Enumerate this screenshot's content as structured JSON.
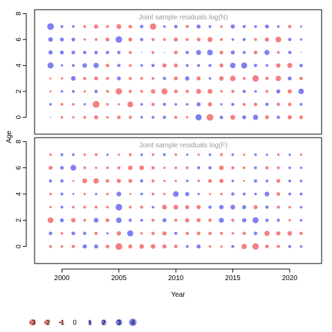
{
  "chart_data": {
    "type": "bubble",
    "xlabel": "Year",
    "ylabel": "Age",
    "x_ticks": [
      2000,
      2005,
      2010,
      2015,
      2020
    ],
    "y_ticks": [
      0,
      2,
      4,
      6,
      8
    ],
    "xlim": [
      1997.6,
      2022.8
    ],
    "ylim": [
      -1.3,
      8.3
    ],
    "colors": {
      "positive": "#6a6af0",
      "negative": "#f26a6a"
    },
    "years": [
      1999,
      2000,
      2001,
      2002,
      2003,
      2004,
      2005,
      2006,
      2007,
      2008,
      2009,
      2010,
      2011,
      2012,
      2013,
      2014,
      2015,
      2016,
      2017,
      2018,
      2019,
      2020,
      2021
    ],
    "ages": [
      0,
      1,
      2,
      3,
      4,
      5,
      6,
      7
    ],
    "panels": [
      {
        "title": "Joint sample residuals log(N)",
        "residuals": [
          [
            0.1,
            -0.5,
            -0.4,
            -0.6,
            -1.2,
            -0.5,
            -0.9,
            -0.7,
            0.5,
            0.6,
            0.8,
            -0.7,
            -0.4,
            2.8,
            -3.2,
            0.9,
            -1.7,
            1.1,
            2.0,
            -1.1,
            0.8,
            -1.3,
            -1.0
          ],
          [
            0.5,
            -0.6,
            -0.5,
            0.4,
            -3.3,
            -0.5,
            -0.4,
            -2.4,
            0.5,
            -0.8,
            0.7,
            0.5,
            0.5,
            1.2,
            -1.3,
            0.4,
            0.7,
            -0.7,
            -0.9,
            0.8,
            -0.8,
            -0.9,
            0.6
          ],
          [
            -0.3,
            0.5,
            0.6,
            -0.4,
            0.8,
            -0.6,
            -2.9,
            -0.7,
            -0.6,
            -1.4,
            -2.6,
            -1.0,
            -0.8,
            -1.8,
            -1.7,
            -0.5,
            -0.7,
            0.8,
            0.5,
            -0.6,
            1.2,
            -1.3,
            2.2
          ],
          [
            -0.3,
            -0.4,
            1.6,
            -0.7,
            -1.1,
            -0.7,
            1.1,
            -0.7,
            -0.6,
            -0.6,
            0.8,
            -1.1,
            1.4,
            -1.2,
            0.5,
            -1.5,
            -2.2,
            -0.6,
            -3.0,
            -0.8,
            -2.1,
            1.1,
            -0.9
          ],
          [
            2.6,
            0.4,
            0.6,
            1.5,
            2.0,
            -0.9,
            0.8,
            -0.6,
            0.5,
            0.8,
            -1.3,
            -1.1,
            0.6,
            0.7,
            0.7,
            -1.1,
            2.2,
            2.6,
            0.8,
            0.5,
            -1.4,
            -1.8,
            0.9
          ],
          [
            1.3,
            1.1,
            1.0,
            0.8,
            0.9,
            0.8,
            0.8,
            -0.7,
            0.1,
            -0.6,
            0.1,
            -1.0,
            0.8,
            1.8,
            2.4,
            -1.0,
            1.2,
            0.7,
            -1.0,
            1.9,
            -0.6,
            0.8,
            0.1
          ],
          [
            1.6,
            1.1,
            1.0,
            -0.4,
            -0.6,
            -1.1,
            3.1,
            -1.1,
            0.8,
            -0.7,
            -0.6,
            -1.2,
            -0.6,
            -1.0,
            -1.8,
            -0.6,
            0.5,
            0.7,
            -0.6,
            -1.3,
            -2.4,
            0.8,
            0.4
          ],
          [
            3.3,
            0.6,
            0.5,
            -0.6,
            -1.3,
            -0.6,
            -1.7,
            -0.9,
            0.8,
            -2.9,
            0.5,
            0.9,
            -0.7,
            1.2,
            0.6,
            -0.5,
            1.3,
            0.7,
            0.6,
            1.1,
            0.5,
            -0.8,
            0.3
          ]
        ]
      },
      {
        "title": "Joint sample residuals log(F)",
        "residuals": [
          [
            -0.6,
            -0.5,
            -0.8,
            1.3,
            1.2,
            -1.0,
            -3.3,
            -1.2,
            -1.5,
            -1.6,
            -1.3,
            -0.9,
            0.6,
            1.2,
            -0.5,
            -0.4,
            0.7,
            -2.0,
            -3.0,
            -1.0,
            -0.8,
            0.7,
            0.5
          ],
          [
            0.9,
            -0.5,
            1.0,
            0.8,
            -0.8,
            0.4,
            -1.4,
            2.7,
            -0.5,
            -0.8,
            -1.3,
            0.7,
            -0.8,
            -1.0,
            -0.8,
            -0.7,
            -0.5,
            -0.8,
            0.9,
            -2.0,
            -1.3,
            -1.5,
            -0.8
          ],
          [
            -2.4,
            1.1,
            -1.5,
            -0.6,
            1.6,
            -1.0,
            2.2,
            0.7,
            0.6,
            -0.7,
            1.2,
            -0.7,
            -1.3,
            -1.2,
            -0.8,
            1.8,
            -0.7,
            1.3,
            2.6,
            0.8,
            0.7,
            -0.4,
            0.5
          ],
          [
            -0.4,
            0.6,
            -0.5,
            -0.6,
            -0.6,
            -0.5,
            3.1,
            -0.6,
            -0.7,
            0.5,
            -1.6,
            -1.7,
            -1.2,
            -1.3,
            0.8,
            1.4,
            1.6,
            1.2,
            -1.2,
            0.8,
            -0.7,
            -0.5,
            0.5
          ],
          [
            -0.5,
            0.6,
            0.3,
            -0.4,
            0.4,
            -0.5,
            1.6,
            -0.3,
            0.5,
            -0.6,
            -0.4,
            2.4,
            1.3,
            0.4,
            -0.3,
            -0.5,
            0.8,
            0.6,
            0.5,
            1.6,
            -1.0,
            0.6,
            0.6
          ],
          [
            0.7,
            0.8,
            -0.3,
            -1.7,
            -2.1,
            -0.9,
            -1.3,
            -1.1,
            0.8,
            -0.7,
            -0.4,
            -0.4,
            0.5,
            -0.5,
            -1.0,
            -1.3,
            0.5,
            -0.3,
            0.8,
            0.6,
            -1.1,
            0.6,
            0.5
          ],
          [
            -1.1,
            1.0,
            2.4,
            -0.6,
            -0.4,
            -0.5,
            -0.7,
            -1.5,
            -1.6,
            -0.8,
            -0.4,
            -0.5,
            -0.6,
            0.7,
            0.8,
            -1.5,
            -0.7,
            -0.5,
            0.6,
            -0.8,
            -0.6,
            0.5,
            0.4
          ],
          [
            -0.5,
            0.6,
            0.5,
            -0.5,
            -0.6,
            0.4,
            -0.4,
            -0.6,
            0.5,
            -0.5,
            0.6,
            -0.5,
            0.4,
            -0.4,
            0.5,
            -0.6,
            0.5,
            -0.4,
            0.5,
            0.4,
            -0.5,
            0.4,
            -0.4
          ]
        ]
      }
    ],
    "legend": {
      "values": [
        -3,
        -2,
        -1,
        0,
        1,
        2,
        3,
        4
      ],
      "labels": [
        "-3",
        "-2",
        "-1",
        "0",
        "1",
        "2",
        "3",
        "4"
      ]
    }
  }
}
